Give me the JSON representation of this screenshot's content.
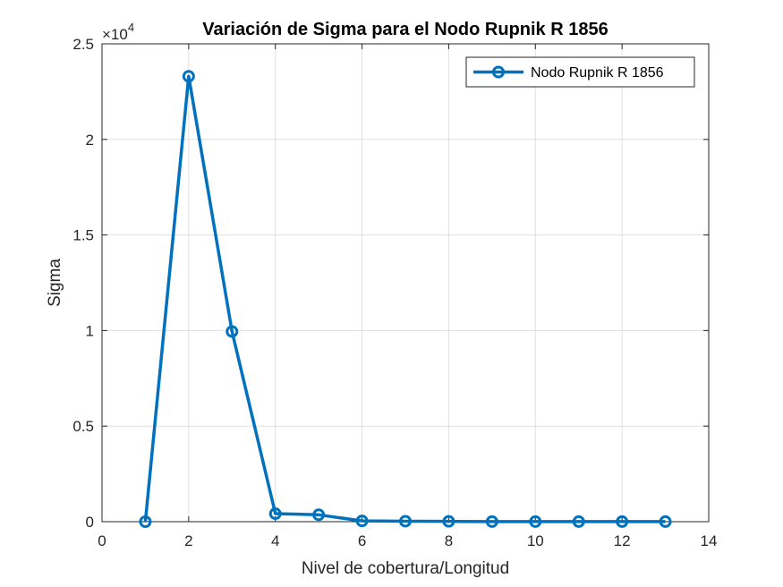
{
  "chart_data": {
    "type": "line",
    "title": "Variación de Sigma para el Nodo Rupnik R 1856",
    "xlabel": "Nivel de cobertura/Longitud",
    "ylabel": "Sigma",
    "exponent_base": "×10",
    "exponent_power": "4",
    "xlim": [
      0,
      14
    ],
    "ylim": [
      0,
      25000
    ],
    "xticks": [
      0,
      2,
      4,
      6,
      8,
      10,
      12,
      14
    ],
    "xtick_labels": [
      "0",
      "2",
      "4",
      "6",
      "8",
      "10",
      "12",
      "14"
    ],
    "yticks": [
      0,
      5000,
      10000,
      15000,
      20000,
      25000
    ],
    "ytick_labels": [
      "0",
      "0.5",
      "1",
      "1.5",
      "2",
      "2.5"
    ],
    "grid": true,
    "legend_position": "top-right",
    "series": [
      {
        "name": "Nodo Rupnik R 1856",
        "color": "#0072BD",
        "marker": "circle",
        "x": [
          1,
          2,
          3,
          4,
          5,
          6,
          7,
          8,
          9,
          10,
          11,
          12,
          13
        ],
        "y": [
          0,
          23300,
          9950,
          420,
          360,
          40,
          25,
          15,
          5,
          5,
          5,
          5,
          5
        ]
      }
    ]
  }
}
